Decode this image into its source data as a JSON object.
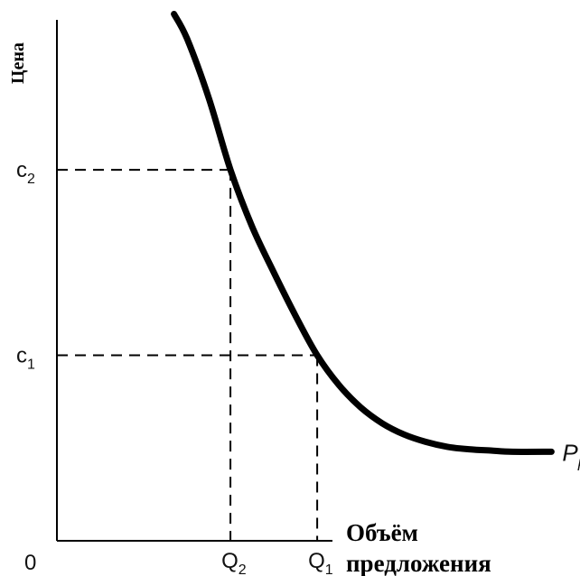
{
  "chart_data": {
    "type": "line",
    "ylabel": "Цена",
    "xlabel": [
      "Объём",
      "предложения"
    ],
    "origin_label": "0",
    "x_ticks": [
      {
        "base": "Q",
        "sub": "2",
        "x": 2
      },
      {
        "base": "Q",
        "sub": "1",
        "x": 3
      }
    ],
    "y_ticks": [
      {
        "base": "c",
        "sub": "2",
        "y": 3
      },
      {
        "base": "c",
        "sub": "1",
        "y": 1.5
      }
    ],
    "series": [
      {
        "name_base": "P",
        "name_sub": "p",
        "x": [
          1.35,
          1.5,
          1.75,
          2.0,
          2.25,
          2.5,
          2.75,
          3.0,
          3.25,
          3.5,
          3.75,
          4.0,
          4.25,
          4.5,
          4.75,
          5.0,
          5.25,
          5.7
        ],
        "y": [
          4.26,
          4.06,
          3.58,
          3.0,
          2.54,
          2.17,
          1.82,
          1.5,
          1.26,
          1.08,
          0.95,
          0.86,
          0.8,
          0.76,
          0.74,
          0.73,
          0.72,
          0.72
        ]
      }
    ],
    "xlim": [
      0,
      5.8
    ],
    "ylim": [
      0,
      4.3
    ],
    "grid": false,
    "legend": "none",
    "line_color": "#000000"
  }
}
